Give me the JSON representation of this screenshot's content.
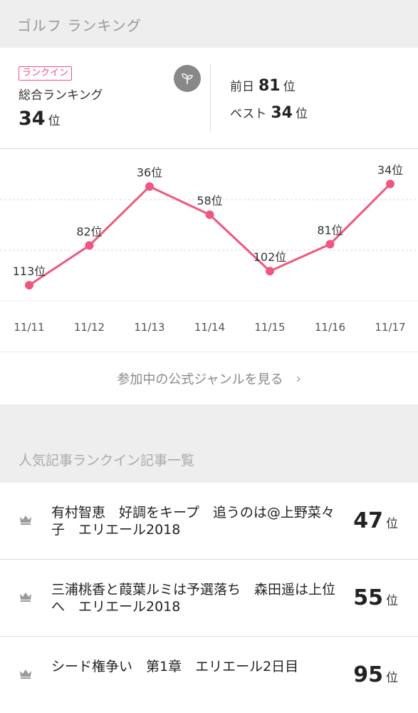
{
  "header": {
    "title": "ゴルフ ランキング"
  },
  "summary": {
    "badge": "ランクイン",
    "overall_label": "総合ランキング",
    "overall_rank": "34",
    "rank_unit": "位",
    "prev_day_label": "前日",
    "prev_day_rank": "81",
    "best_label": "ベスト",
    "best_rank": "34",
    "leaf_icon": "sprout-icon"
  },
  "chart_data": {
    "type": "line",
    "categories": [
      "11/11",
      "11/12",
      "11/13",
      "11/14",
      "11/15",
      "11/16",
      "11/17"
    ],
    "values": [
      113,
      82,
      36,
      58,
      102,
      81,
      34
    ],
    "labels": [
      "113位",
      "82位",
      "36位",
      "58位",
      "102位",
      "81位",
      "34位"
    ],
    "y_inverted": true,
    "grid": "dashed-horizontal",
    "color": "#f0577f"
  },
  "genre_link": {
    "label": "参加中の公式ジャンルを見る",
    "chevron": "›"
  },
  "articles_section": {
    "title": "人気記事ランクイン記事一覧"
  },
  "articles": [
    {
      "title": "有村智恵　好調をキープ　追うのは@上野菜々子　エリエール2018",
      "rank": "47",
      "unit": "位"
    },
    {
      "title": "三浦桃香と葭葉ルミは予選落ち　森田遥は上位へ　エリエール2018",
      "rank": "55",
      "unit": "位"
    },
    {
      "title": "シード権争い　第1章　エリエール2日目",
      "rank": "95",
      "unit": "位"
    }
  ],
  "colors": {
    "accent": "#f0577f",
    "badge": "#e8517e",
    "section_bg": "#eeeeee"
  }
}
